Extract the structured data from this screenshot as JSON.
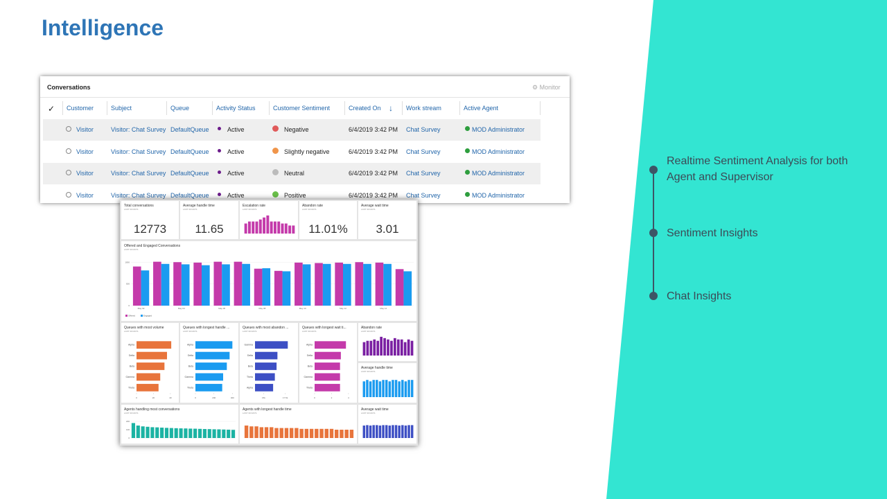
{
  "title": "Intelligence",
  "conversations": {
    "title": "Conversations",
    "monitor": "Monitor",
    "columns": [
      "Customer",
      "Subject",
      "Queue",
      "Activity Status",
      "Customer Sentiment",
      "Created On",
      "Work stream",
      "Active Agent"
    ],
    "rows": [
      [
        "Visitor",
        "Visitor: Chat Survey",
        "DefaultQueue",
        "Active",
        "Negative",
        "6/4/2019 3:42 PM",
        "Chat Survey",
        "MOD Administrator"
      ],
      [
        "Visitor",
        "Visitor: Chat Survey",
        "DefaultQueue",
        "Active",
        "Slightly negative",
        "6/4/2019 3:42 PM",
        "Chat Survey",
        "MOD Administrator"
      ],
      [
        "Visitor",
        "Visitor: Chat Survey",
        "DefaultQueue",
        "Active",
        "Neutral",
        "6/4/2019 3:42 PM",
        "Chat Survey",
        "MOD Administrator"
      ],
      [
        "Visitor",
        "Visitor: Chat Survey",
        "DefaultQueue",
        "Active",
        "Positive",
        "6/4/2019 3:42 PM",
        "Chat Survey",
        "MOD Administrator"
      ]
    ]
  },
  "dashboard": {
    "kpis": [
      {
        "title": "Total conversations",
        "subtitle": "LAST 30 DAYS",
        "value": 12773
      },
      {
        "title": "Average handle time",
        "subtitle": "LAST 30 DAYS",
        "value": 11.65
      },
      {
        "title": "Abandon rate",
        "subtitle": "LAST 30 DAYS",
        "value": "11.01%"
      },
      {
        "title": "Average wait time",
        "subtitle": "LAST 30 DAYS",
        "value": 3.01
      }
    ],
    "charts": [
      {
        "type": "bar",
        "title": "Escalation rate",
        "subtitle": "LAST 30 DAYS",
        "color": "#c43aaa",
        "ylim": [
          0,
          10
        ],
        "values": [
          5,
          6,
          6,
          6,
          7,
          8,
          9,
          6,
          6,
          6,
          5,
          5,
          4,
          4
        ]
      },
      {
        "type": "bar",
        "title": "Offered and Engaged Conversations",
        "subtitle": "LAST 30 DAYS",
        "ylim": [
          0,
          1100
        ],
        "yticks": [
          0,
          500,
          1000
        ],
        "categories": [
          "May 02",
          null,
          "May 04",
          null,
          "May 06",
          null,
          "May 08",
          null,
          "May 10",
          null,
          "May 12",
          null,
          "May 14",
          null
        ],
        "series": [
          {
            "name": "Offered",
            "color": "#c43aaa",
            "values": [
              900,
              1010,
              1000,
              990,
              1010,
              1010,
              850,
              800,
              990,
              980,
              990,
              1000,
              990,
              840
            ]
          },
          {
            "name": "Engaged",
            "color": "#1a9bf0",
            "values": [
              810,
              960,
              950,
              930,
              950,
              960,
              860,
              790,
              950,
              960,
              960,
              960,
              960,
              790
            ]
          }
        ]
      },
      {
        "type": "hbar",
        "title": "Queues with most volume",
        "subtitle": "LAST 30 DAYS",
        "color": "#e8743b",
        "categories": [
          "Alpha",
          "Delta",
          "Beta",
          "Gamma",
          "Theta"
        ],
        "values": [
          41,
          36,
          33,
          28,
          26
        ],
        "xlim": [
          0,
          45
        ],
        "xticks": [
          0,
          20,
          40
        ]
      },
      {
        "type": "hbar",
        "title": "Queues with longest handle ...",
        "subtitle": "LAST 30 DAYS",
        "color": "#1a9bf0",
        "categories": [
          "Alpha",
          "Delta",
          "Beta",
          "Gamma",
          "Theta"
        ],
        "values": [
          400,
          370,
          340,
          300,
          290
        ],
        "xlim": [
          0,
          420
        ],
        "xticks": [
          0,
          200,
          400
        ]
      },
      {
        "type": "hbar",
        "title": "Queues with most abandon ...",
        "subtitle": "LAST 30 DAYS",
        "color": "#3d4fc4",
        "categories": [
          "Gamma",
          "Delta",
          "Beta",
          "Theta",
          "Alpha"
        ],
        "values": [
          17800,
          16600,
          16500,
          16300,
          16100
        ],
        "xlim": [
          14000,
          18500
        ],
        "xticks": [
          {
            "value": 15000,
            "label": "15k"
          },
          {
            "value": 17500,
            "label": "17.5k"
          }
        ]
      },
      {
        "type": "hbar",
        "title": "Queues with longest wait ti...",
        "subtitle": "LAST 30 DAYS",
        "color": "#c43aaa",
        "categories": [
          "Alpha",
          "Delta",
          "Beta",
          "Gamma",
          "Theta"
        ],
        "values": [
          3.7,
          3.1,
          3.0,
          3.0,
          3.0
        ],
        "xlim": [
          0,
          4.5
        ],
        "xticks": [
          0,
          2,
          4
        ]
      },
      {
        "type": "bar",
        "title": "Abandon rate",
        "subtitle": "LAST 30 DAYS",
        "color": "#7a1fa2",
        "ylim": [
          0,
          15
        ],
        "values": [
          10,
          11,
          11,
          12,
          11,
          14,
          13,
          12,
          11,
          13,
          12,
          12,
          10,
          12,
          11
        ]
      },
      {
        "type": "bar",
        "title": "Average handle time",
        "subtitle": "LAST 30 DAYS",
        "color": "#1a9bf0",
        "ylim": [
          0,
          15
        ],
        "values": [
          11,
          12,
          11,
          12,
          12,
          11,
          12,
          12,
          11,
          12,
          12,
          11,
          12,
          11,
          12,
          12
        ]
      },
      {
        "type": "bar",
        "title": "Agents handling most conversations",
        "subtitle": "LAST 30 DAYS",
        "color": "#1bb3a3",
        "ylim": [
          0,
          250
        ],
        "yticks": [
          0,
          100,
          200
        ],
        "values": [
          180,
          150,
          140,
          135,
          130,
          128,
          125,
          122,
          120,
          118,
          116,
          115,
          113,
          112,
          110,
          108,
          107,
          105,
          104,
          102,
          100,
          98
        ]
      },
      {
        "type": "bar",
        "title": "Agents with longest handle time",
        "subtitle": "LAST 30 DAYS",
        "color": "#e8743b",
        "ylim": [
          0,
          25
        ],
        "values": [
          15,
          14,
          14,
          13,
          13,
          13,
          12,
          12,
          12,
          12,
          12,
          11,
          11,
          11,
          11,
          11,
          11,
          11,
          10,
          10,
          10,
          10
        ]
      },
      {
        "type": "bar",
        "title": "Average wait time",
        "subtitle": "LAST 30 DAYS",
        "color": "#3d4fc4",
        "ylim": [
          0,
          5
        ],
        "values": [
          3,
          3.1,
          3,
          3.1,
          3.1,
          3,
          3.1,
          3.1,
          3,
          3.1,
          3.1,
          3,
          3.1,
          3,
          3.1,
          3.1
        ]
      }
    ]
  },
  "timeline": [
    "Realtime Sentiment Analysis for both Agent and Supervisor",
    "Sentiment Insights",
    "Chat Insights"
  ]
}
